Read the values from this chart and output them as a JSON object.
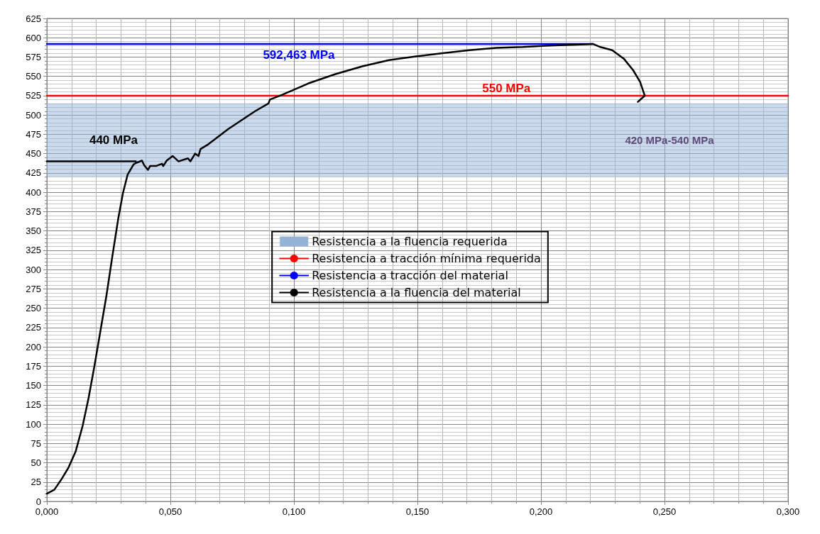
{
  "chart_data": {
    "type": "line",
    "xlim": [
      0,
      0.3
    ],
    "ylim": [
      0,
      625
    ],
    "xticks": [
      {
        "value": 0,
        "label": "0,000"
      },
      {
        "value": 0.05,
        "label": "0,050"
      },
      {
        "value": 0.1,
        "label": "0,100"
      },
      {
        "value": 0.15,
        "label": "0,150"
      },
      {
        "value": 0.2,
        "label": "0,200"
      },
      {
        "value": 0.25,
        "label": "0,250"
      },
      {
        "value": 0.3,
        "label": "0,300"
      }
    ],
    "yticks": [
      0,
      25,
      50,
      75,
      100,
      125,
      150,
      175,
      200,
      225,
      250,
      275,
      300,
      325,
      350,
      375,
      400,
      425,
      450,
      475,
      500,
      525,
      550,
      575,
      600,
      625
    ],
    "annotations": [
      "420 MPa-540 MPa",
      "550 MPa",
      "592,463 MPa",
      "440 MPa"
    ],
    "bands": [
      {
        "axis": "y",
        "from": 420,
        "to": 515,
        "label": "Resistencia a la fluencia requerida",
        "color": "#95b3d7"
      }
    ],
    "grid": true,
    "legend": "center",
    "marker": "none",
    "line_style": "solid",
    "series": [
      {
        "name": "Resistencia a tracción mínima requerida",
        "color": "#ff0000",
        "x": [
          0,
          0.3
        ],
        "values": [
          525,
          525
        ]
      },
      {
        "name": "Resistencia a tracción del material",
        "color": "#0000ff",
        "x": [
          0,
          0.221
        ],
        "values": [
          592,
          592
        ]
      },
      {
        "name": "Resistencia a la fluencia del material",
        "color": "#000000",
        "x": [
          0,
          0.036
        ],
        "values": [
          440,
          440
        ]
      },
      {
        "color": "#000000",
        "x": [
          0,
          0.003,
          0.006,
          0.0088,
          0.0117,
          0.0145,
          0.0169,
          0.0193,
          0.0217,
          0.0241,
          0.0265,
          0.0289,
          0.0308,
          0.0327,
          0.0351,
          0.0361,
          0.0385,
          0.0394,
          0.0409,
          0.0418,
          0.0442,
          0.0466,
          0.0471,
          0.0485,
          0.0509,
          0.0533,
          0.0571,
          0.0581,
          0.06,
          0.0614,
          0.0622,
          0.0653,
          0.0735,
          0.0843,
          0.0897,
          0.0903,
          0.0951,
          0.1059,
          0.1168,
          0.1277,
          0.1385,
          0.1494,
          0.1602,
          0.171,
          0.1819,
          0.1927,
          0.2035,
          0.2144,
          0.221,
          0.224,
          0.2288,
          0.2335,
          0.2373,
          0.2401,
          0.242,
          0.2392
        ],
        "values": [
          10,
          15,
          29,
          44,
          65,
          98,
          134,
          176,
          221,
          266,
          317,
          366,
          399,
          423,
          436,
          438,
          441,
          435,
          429,
          434,
          434,
          437,
          434,
          441,
          447,
          440,
          444,
          440,
          450,
          447,
          456,
          462,
          482,
          505,
          515,
          520,
          526,
          541,
          553,
          563,
          571,
          576,
          580,
          584,
          587,
          588,
          590,
          591,
          592,
          588,
          584,
          573,
          558,
          543,
          525,
          517
        ]
      }
    ]
  }
}
